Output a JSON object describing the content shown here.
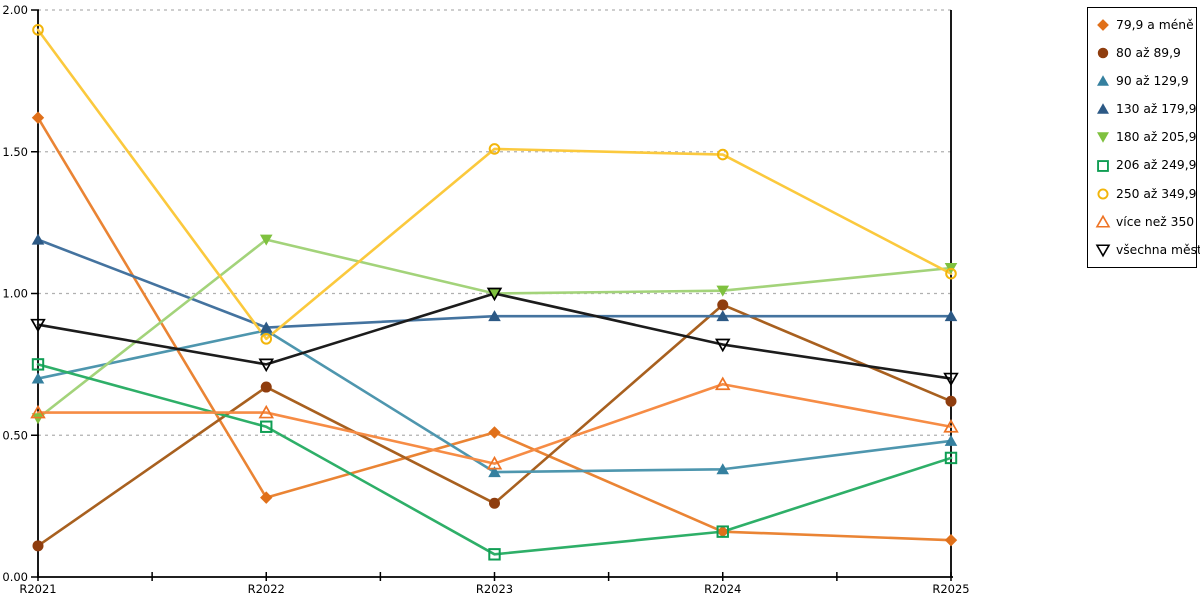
{
  "chart_data": {
    "type": "line",
    "categories": [
      "R2021",
      "R2022",
      "R2023",
      "R2024",
      "R2025"
    ],
    "series": [
      {
        "name": "79,9 a méně",
        "marker": "diamond",
        "hollow": false,
        "line_color": "#EA8434",
        "marker_color": "#E0701A",
        "values": [
          1.62,
          0.28,
          0.51,
          0.16,
          0.13
        ]
      },
      {
        "name": "80 až 89,9",
        "marker": "circle",
        "hollow": false,
        "line_color": "#A8601F",
        "marker_color": "#8F3D0E",
        "values": [
          0.11,
          0.67,
          0.26,
          0.96,
          0.62
        ]
      },
      {
        "name": "90 až 129,9",
        "marker": "triangle-up",
        "hollow": false,
        "line_color": "#4E96AE",
        "marker_color": "#35809F",
        "values": [
          0.7,
          0.87,
          0.37,
          0.38,
          0.48
        ]
      },
      {
        "name": "130 až 179,9",
        "marker": "triangle-up",
        "hollow": false,
        "line_color": "#44739F",
        "marker_color": "#2C5985",
        "values": [
          1.19,
          0.88,
          0.92,
          0.92,
          0.92
        ]
      },
      {
        "name": "180 až 205,9",
        "marker": "triangle-down",
        "hollow": false,
        "line_color": "#A3D37A",
        "marker_color": "#7FC13F",
        "values": [
          0.56,
          1.19,
          1.0,
          1.01,
          1.09
        ]
      },
      {
        "name": "206 až 249,9",
        "marker": "square",
        "hollow": true,
        "line_color": "#2EAF68",
        "marker_color": "#109E54",
        "values": [
          0.75,
          0.53,
          0.08,
          0.16,
          0.42
        ]
      },
      {
        "name": "250 až 349,9",
        "marker": "circle",
        "hollow": true,
        "line_color": "#FBC93D",
        "marker_color": "#F2B50B",
        "values": [
          1.93,
          0.84,
          1.51,
          1.49,
          1.07
        ]
      },
      {
        "name": "více než 350",
        "marker": "triangle-up",
        "hollow": true,
        "line_color": "#F68C45",
        "marker_color": "#EE7425",
        "values": [
          0.58,
          0.58,
          0.4,
          0.68,
          0.53
        ]
      },
      {
        "name": "všechna města",
        "marker": "triangle-down",
        "hollow": true,
        "line_color": "#1C1C1C",
        "marker_color": "#000000",
        "values": [
          0.89,
          0.75,
          1.0,
          0.82,
          0.7
        ]
      }
    ],
    "ylim": [
      0,
      2
    ],
    "yticks": [
      {
        "v": 0.0,
        "label": "0.00"
      },
      {
        "v": 0.5,
        "label": "0.50"
      },
      {
        "v": 1.0,
        "label": "1.00"
      },
      {
        "v": 1.5,
        "label": "1.50"
      },
      {
        "v": 2.0,
        "label": "2.00"
      }
    ],
    "grid": true,
    "legend_position": "right"
  },
  "colors": {
    "grid": "#B0B0B0",
    "axis": "#000000",
    "background": "#FFFFFF",
    "legend_border": "#000000",
    "tick_text": "#000000"
  }
}
